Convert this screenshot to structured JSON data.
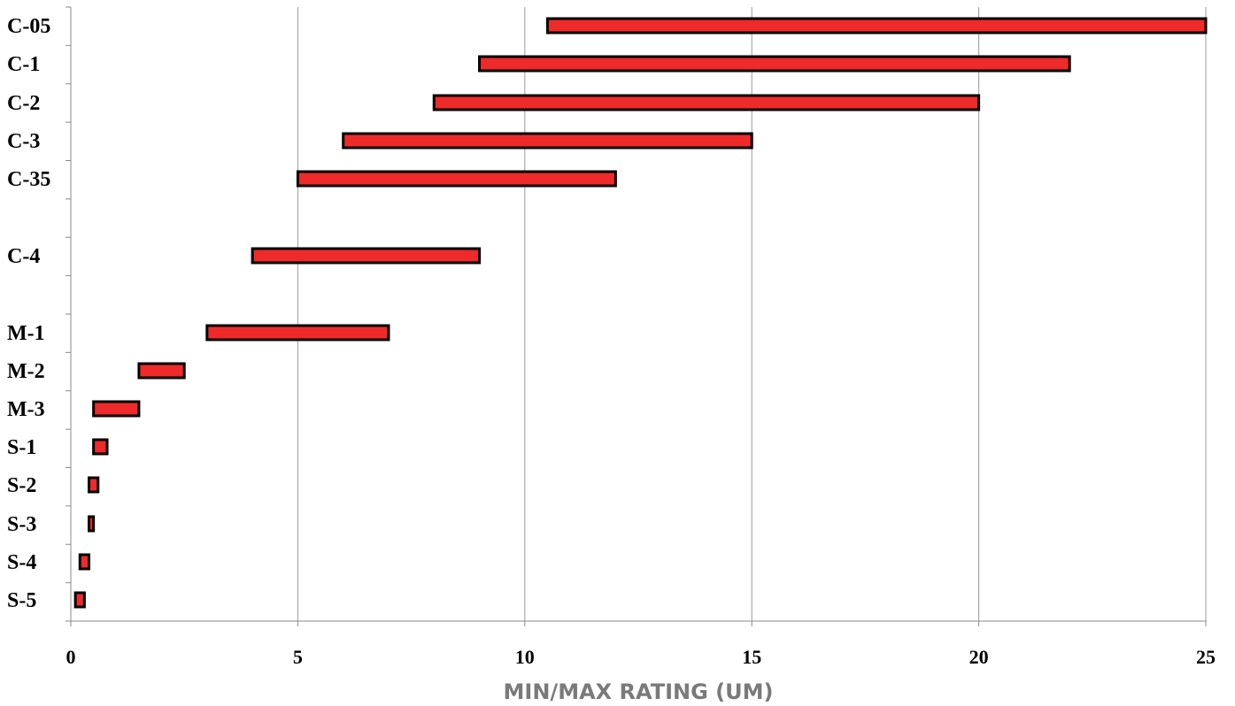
{
  "chart_data": {
    "type": "bar",
    "orientation": "horizontal-range",
    "xlabel": "MIN/MAX RATING (UM)",
    "xlim": [
      0,
      25
    ],
    "xticks": [
      0,
      5,
      10,
      15,
      20,
      25
    ],
    "grid": "vertical",
    "bar_color": "#ee2a2a",
    "bar_border": "#000000",
    "categories": [
      "C-05",
      "C-1",
      "C-2",
      "C-3",
      "C-35",
      "C-4",
      "M-1",
      "M-2",
      "M-3",
      "S-1",
      "S-2",
      "S-3",
      "S-4",
      "S-5"
    ],
    "series": [
      {
        "min": 10.5,
        "max": 25
      },
      {
        "min": 9,
        "max": 22
      },
      {
        "min": 8,
        "max": 20
      },
      {
        "min": 6,
        "max": 15
      },
      {
        "min": 5,
        "max": 12
      },
      {
        "min": 4,
        "max": 9
      },
      {
        "min": 3,
        "max": 7
      },
      {
        "min": 1.5,
        "max": 2.5
      },
      {
        "min": 0.5,
        "max": 1.5
      },
      {
        "min": 0.5,
        "max": 0.8
      },
      {
        "min": 0.4,
        "max": 0.6
      },
      {
        "min": 0.4,
        "max": 0.5
      },
      {
        "min": 0.2,
        "max": 0.4
      },
      {
        "min": 0.1,
        "max": 0.3
      }
    ]
  }
}
